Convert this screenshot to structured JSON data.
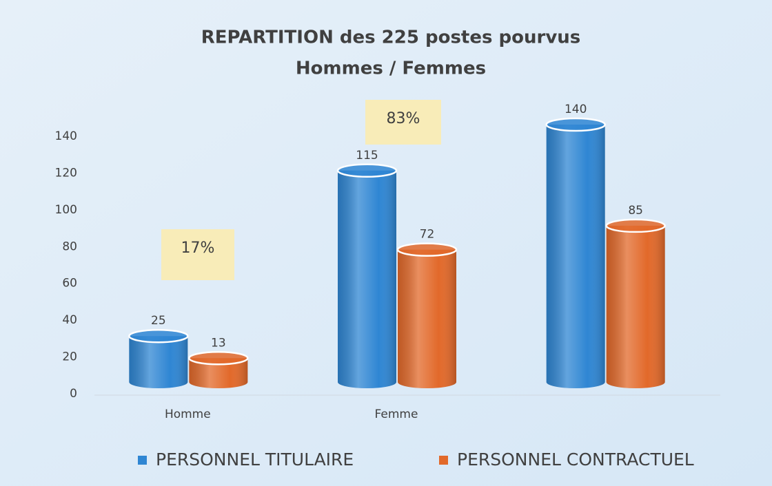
{
  "chart_data": {
    "type": "bar",
    "title": "REPARTITION des 225 postes pourvus",
    "subtitle": "Hommes / Femmes",
    "categories": [
      "Homme",
      "Femme",
      null
    ],
    "series": [
      {
        "name": "PERSONNEL TITULAIRE",
        "color": "#2f86d3",
        "values": [
          25,
          115,
          140
        ]
      },
      {
        "name": "PERSONNEL CONTRACTUEL",
        "color": "#e2692a",
        "values": [
          13,
          72,
          85
        ]
      }
    ],
    "annotations": [
      "17%",
      "83%"
    ],
    "ylim": [
      0,
      140
    ],
    "yticks": [
      0,
      20,
      40,
      60,
      80,
      100,
      120,
      140
    ],
    "grid": false,
    "legend": "bottom"
  }
}
